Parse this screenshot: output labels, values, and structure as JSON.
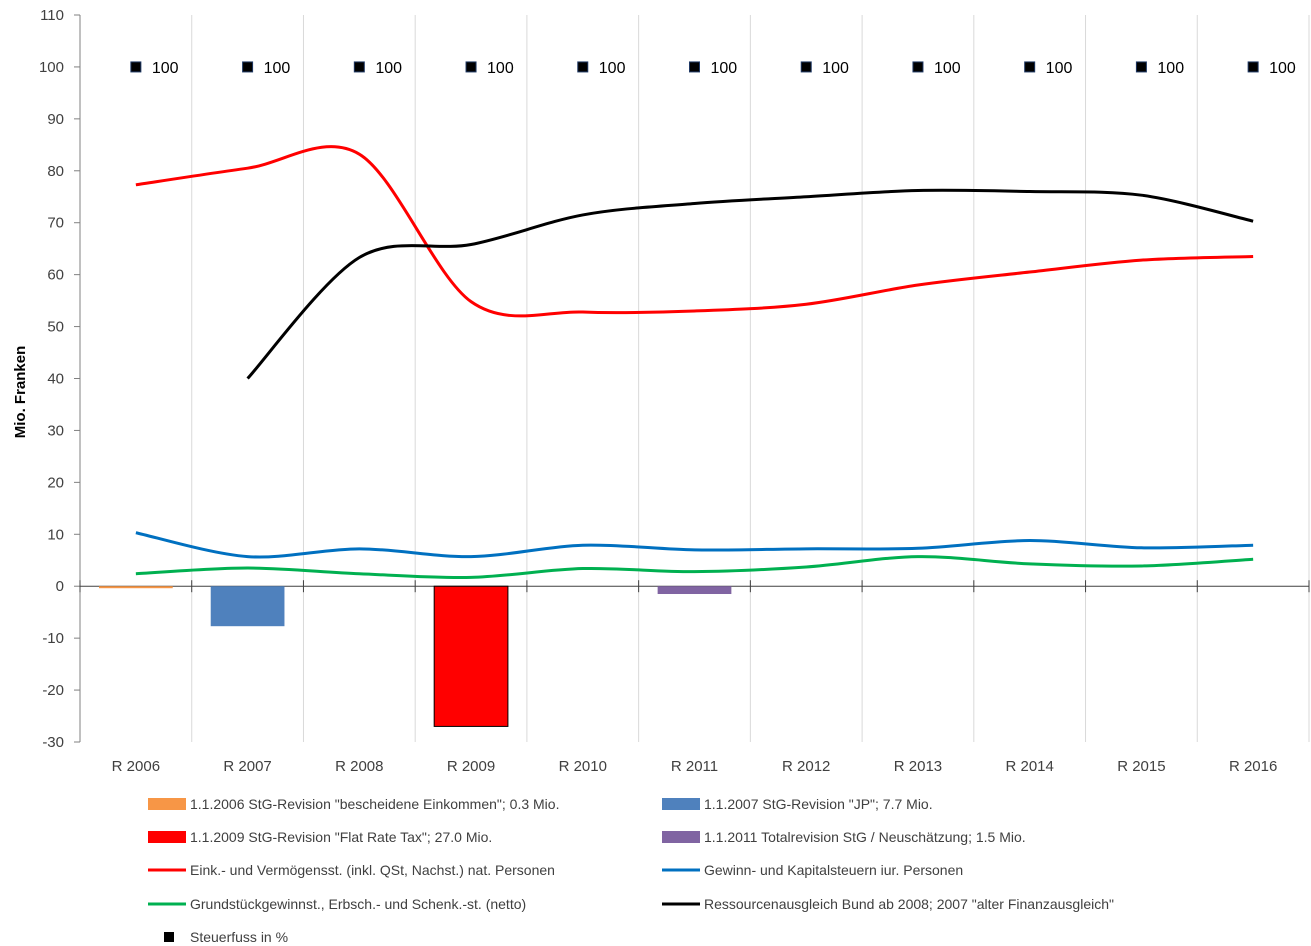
{
  "chart_data": {
    "type": "line",
    "ylabel": "Mio. Franken",
    "ylim": [
      -30,
      110
    ],
    "y_ticks": [
      "110",
      "100",
      "90",
      "80",
      "70",
      "60",
      "50",
      "40",
      "30",
      "20",
      "10",
      "0",
      "-10",
      "-20",
      "-30"
    ],
    "categories": [
      "R 2006",
      "R 2007",
      "R 2008",
      "R 2009",
      "R 2010",
      "R 2011",
      "R 2012",
      "R 2013",
      "R 2014",
      "R 2015",
      "R 2016"
    ],
    "grid": "vertical",
    "legend_position": "bottom",
    "bar_series": [
      {
        "name": "1.1.2006 StG-Revision \"bescheidene Einkommen\"; 0.3 Mio.",
        "color": "#f79646",
        "values": [
          -0.3,
          null,
          null,
          null,
          null,
          null,
          null,
          null,
          null,
          null,
          null
        ]
      },
      {
        "name": "1.1.2007 StG-Revision \"JP\"; 7.7 Mio.",
        "color": "#4f81bd",
        "values": [
          null,
          -7.7,
          null,
          null,
          null,
          null,
          null,
          null,
          null,
          null,
          null
        ]
      },
      {
        "name": "1.1.2009 StG-Revision \"Flat Rate Tax\"; 27.0 Mio.",
        "color": "#ff0000",
        "values": [
          null,
          null,
          null,
          -27.0,
          null,
          null,
          null,
          null,
          null,
          null,
          null
        ]
      },
      {
        "name": "1.1.2011 Totalrevision StG / Neuschätzung; 1.5 Mio.",
        "color": "#8064a2",
        "values": [
          null,
          null,
          null,
          null,
          null,
          -1.5,
          null,
          null,
          null,
          null,
          null
        ]
      }
    ],
    "line_series": [
      {
        "name": "Eink.- und Vermögensst. (inkl. QSt,  Nachst.) nat. Personen",
        "color": "#ff0000",
        "values": [
          77.3,
          80.5,
          83.2,
          54.8,
          52.8,
          53.0,
          54.3,
          58.0,
          60.5,
          62.8,
          63.5
        ]
      },
      {
        "name": "Gewinn- und Kapitalsteuern iur. Personen",
        "color": "#0070c0",
        "values": [
          10.3,
          5.7,
          7.2,
          5.7,
          7.9,
          7.0,
          7.2,
          7.3,
          8.8,
          7.4,
          7.9
        ]
      },
      {
        "name": "Grundstückgewinnst., Erbsch.- und Schenk.-st. (netto)",
        "color": "#00b050",
        "values": [
          2.4,
          3.5,
          2.4,
          1.7,
          3.4,
          2.8,
          3.7,
          5.7,
          4.3,
          3.9,
          5.2
        ]
      },
      {
        "name": "Ressourcenausgleich Bund ab 2008; 2007 \"alter Finanzausgleich\"",
        "color": "#000000",
        "values": [
          null,
          40.0,
          63.3,
          65.8,
          71.5,
          73.7,
          75.0,
          76.2,
          76.0,
          75.3,
          70.3
        ]
      }
    ],
    "point_series": {
      "name": "Steuerfuss in %",
      "color": "#000000",
      "values": [
        100,
        100,
        100,
        100,
        100,
        100,
        100,
        100,
        100,
        100,
        100
      ],
      "labels": [
        "100",
        "100",
        "100",
        "100",
        "100",
        "100",
        "100",
        "100",
        "100",
        "100",
        "100"
      ]
    }
  }
}
